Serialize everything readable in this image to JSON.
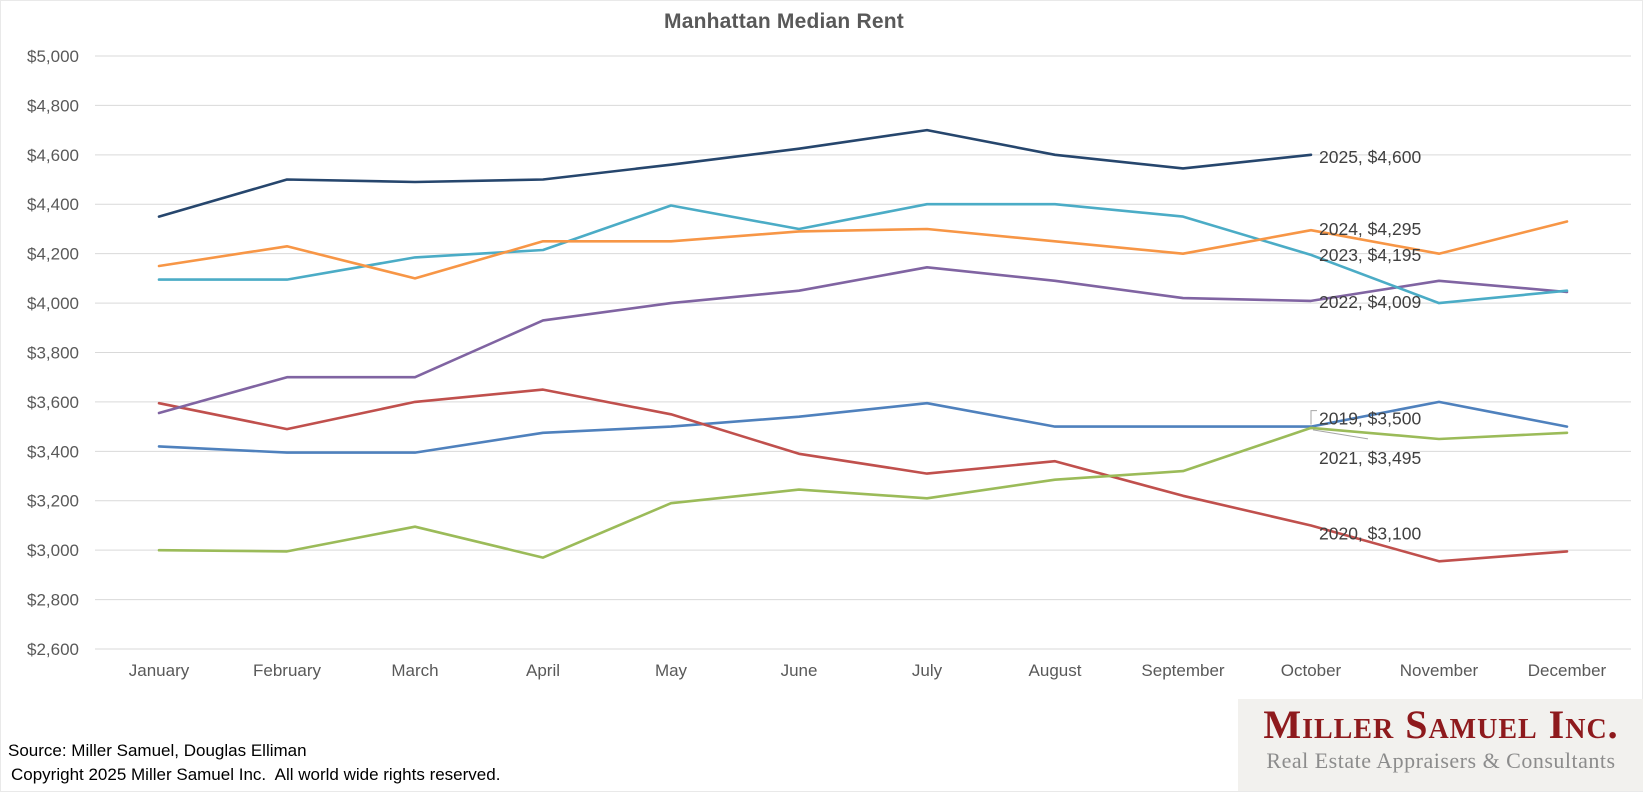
{
  "title": "Manhattan Median Rent",
  "chart_data": {
    "type": "line",
    "title": "Manhattan Median Rent",
    "categories": [
      "January",
      "February",
      "March",
      "April",
      "May",
      "June",
      "July",
      "August",
      "September",
      "October",
      "November",
      "December"
    ],
    "ylim": [
      2600,
      5000
    ],
    "y_step": 200,
    "y_tick_labels": [
      "$2,600",
      "$2,800",
      "$3,000",
      "$3,200",
      "$3,400",
      "$3,600",
      "$3,800",
      "$4,000",
      "$4,200",
      "$4,400",
      "$4,600",
      "$4,800",
      "$5,000"
    ],
    "grid": true,
    "legend": "none",
    "gridline_color": "#D9D9D9",
    "axis_text_color": "#595959",
    "label_text_color": "#404040",
    "leader_line_color": "#A6A6A6",
    "series": [
      {
        "name": "2019",
        "color": "#4F81BD",
        "values": [
          3420,
          3395,
          3395,
          3475,
          3500,
          3540,
          3595,
          3500,
          3500,
          3500,
          3600,
          3500
        ]
      },
      {
        "name": "2020",
        "color": "#C0504D",
        "values": [
          3595,
          3490,
          3600,
          3650,
          3550,
          3390,
          3310,
          3360,
          3220,
          3100,
          2955,
          2995
        ]
      },
      {
        "name": "2021",
        "color": "#9BBB59",
        "values": [
          3000,
          2995,
          3095,
          2970,
          3190,
          3245,
          3210,
          3285,
          3320,
          3495,
          3450,
          3475
        ]
      },
      {
        "name": "2022",
        "color": "#8064A2",
        "values": [
          3555,
          3700,
          3700,
          3930,
          4000,
          4050,
          4145,
          4090,
          4020,
          4009,
          4090,
          4045
        ]
      },
      {
        "name": "2023",
        "color": "#4BACC6",
        "values": [
          4095,
          4095,
          4185,
          4215,
          4395,
          4300,
          4400,
          4400,
          4350,
          4195,
          4000,
          4050
        ]
      },
      {
        "name": "2024",
        "color": "#F79646",
        "values": [
          4150,
          4230,
          4100,
          4250,
          4250,
          4290,
          4300,
          4250,
          4200,
          4295,
          4200,
          4330
        ]
      },
      {
        "name": "2025",
        "color": "#26466D",
        "values": [
          4350,
          4500,
          4490,
          4500,
          4560,
          4625,
          4700,
          4600,
          4545,
          4600
        ]
      }
    ],
    "point_labels": [
      {
        "text": "2025, $4,600",
        "series": "2025",
        "month_index": 9,
        "value": 4600,
        "dy": 2,
        "leader": "none"
      },
      {
        "text": "2024, $4,295",
        "series": "2024",
        "month_index": 9,
        "value": 4295,
        "dy": -1,
        "leader": "none"
      },
      {
        "text": "2023, $4,195",
        "series": "2023",
        "month_index": 9,
        "value": 4195,
        "dy": 0,
        "leader": "none"
      },
      {
        "text": "2022, $4,009",
        "series": "2022",
        "month_index": 9,
        "value": 4009,
        "dy": 1,
        "leader": "none"
      },
      {
        "text": "2019, $3,500",
        "series": "2019",
        "month_index": 9,
        "value": 3500,
        "dy": -8,
        "leader": "elbow"
      },
      {
        "text": "2021, $3,495",
        "series": "2021",
        "month_index": 9,
        "value": 3495,
        "dy": 30,
        "leader": "line"
      },
      {
        "text": "2020, $3,100",
        "series": "2020",
        "month_index": 9,
        "value": 3100,
        "dy": 8,
        "leader": "none"
      }
    ]
  },
  "footer": {
    "source_line": "Source: Miller Samuel, Douglas Elliman",
    "copyright_line": "Copyright 2025 Miller Samuel Inc.  All world wide rights reserved."
  },
  "logo": {
    "name": "Miller Samuel Inc.",
    "tagline": "Real Estate Appraisers & Consultants",
    "name_color": "#8E1A1D",
    "tagline_color": "#8C8C8C",
    "background_color": "#F2F1EE"
  }
}
